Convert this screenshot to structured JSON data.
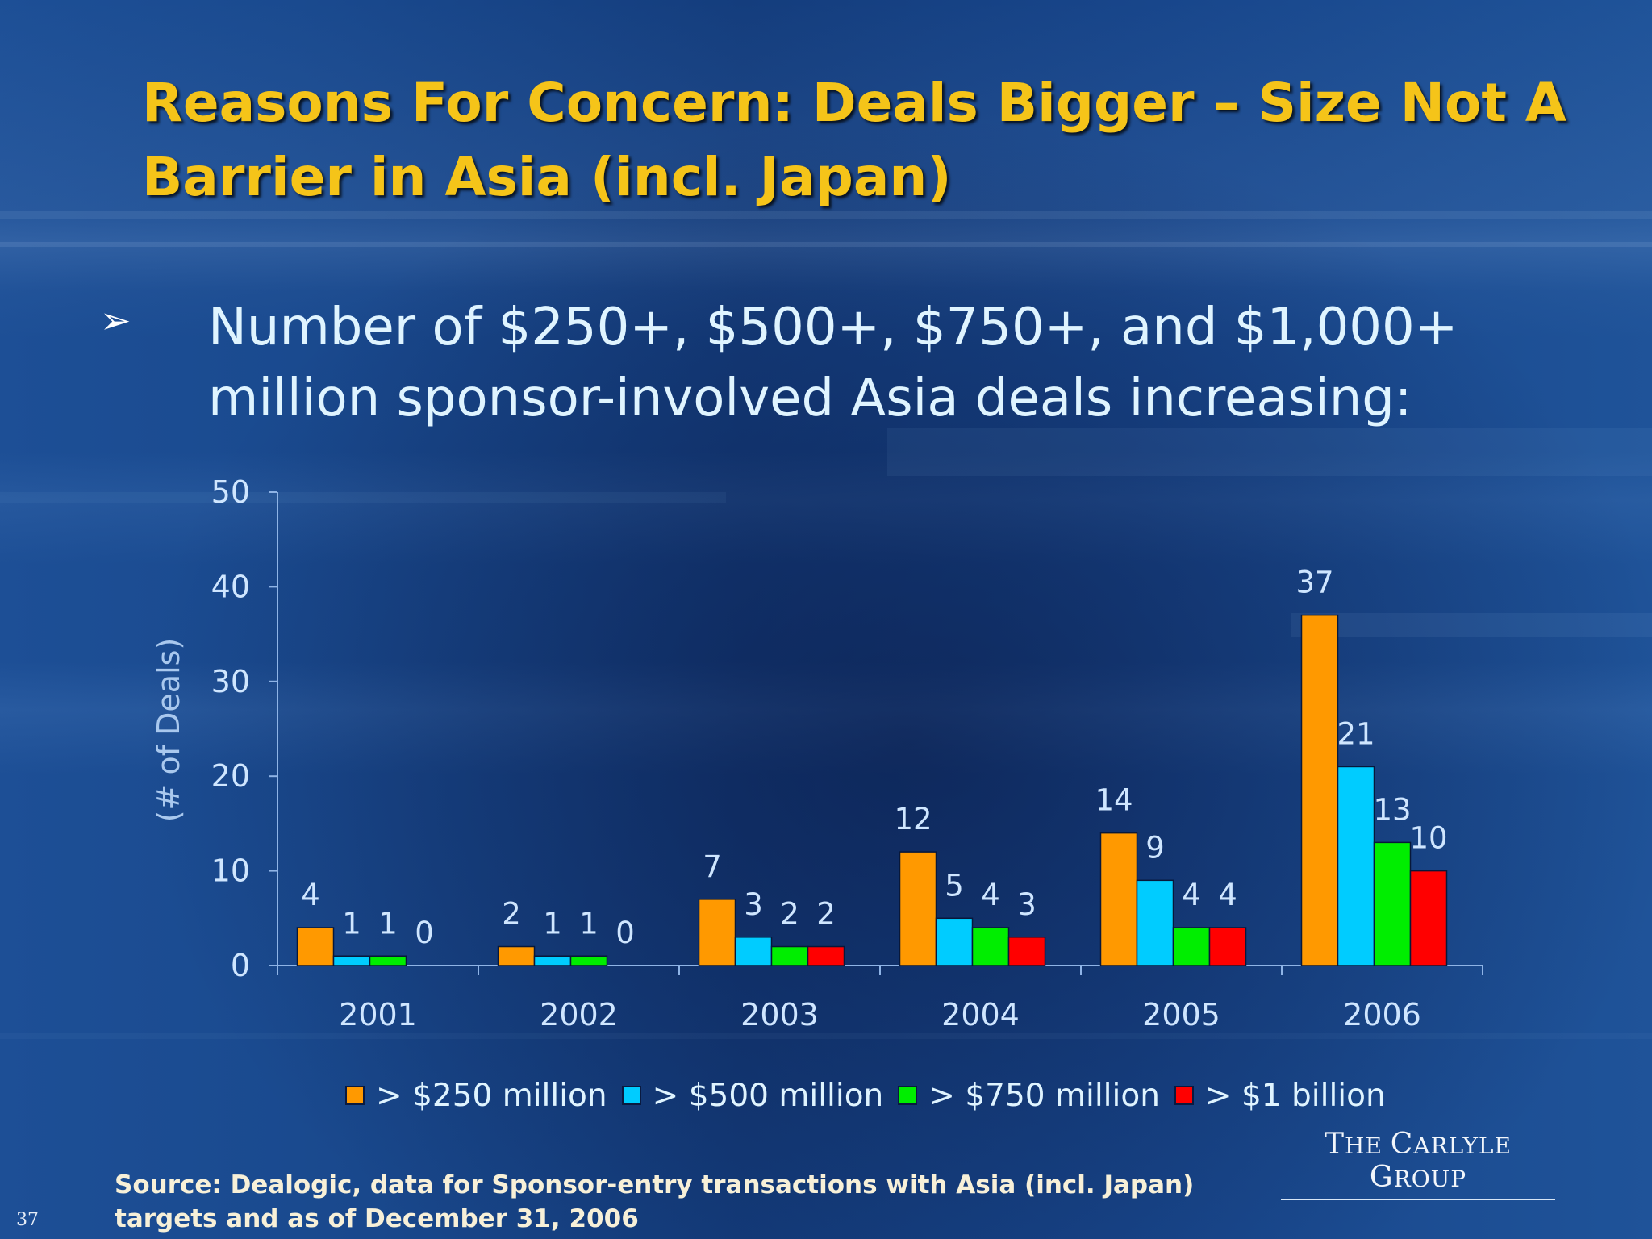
{
  "slide": {
    "title": "Reasons For Concern: Deals Bigger – Size Not A Barrier in Asia (incl. Japan)",
    "bullet_symbol": "➢",
    "bullet_text": "Number of $250+, $500+, $750+, and $1,000+ million sponsor-involved Asia deals increasing:",
    "logo": "The Carlyle Group",
    "source": "Source: Dealogic, data for Sponsor-entry transactions with Asia (incl. Japan) targets and as of December 31, 2006",
    "page_number": "37"
  },
  "chart_data": {
    "type": "bar",
    "title": "",
    "xlabel": "",
    "ylabel": "(# of Deals)",
    "ylim": [
      0,
      50
    ],
    "yticks": [
      0,
      10,
      20,
      30,
      40,
      50
    ],
    "categories": [
      "2001",
      "2002",
      "2003",
      "2004",
      "2005",
      "2006"
    ],
    "series": [
      {
        "name": "> $250 million",
        "color": "#ff9900",
        "values": [
          4,
          2,
          7,
          12,
          14,
          37
        ]
      },
      {
        "name": "> $500 million",
        "color": "#00ccff",
        "values": [
          1,
          1,
          3,
          5,
          9,
          21
        ]
      },
      {
        "name": "> $750 million",
        "color": "#00ee00",
        "values": [
          1,
          1,
          2,
          4,
          4,
          13
        ]
      },
      {
        "name": "> $1 billion",
        "color": "#ff0000",
        "values": [
          0,
          0,
          2,
          3,
          4,
          10
        ]
      }
    ],
    "legend_position": "bottom",
    "grid": false
  }
}
